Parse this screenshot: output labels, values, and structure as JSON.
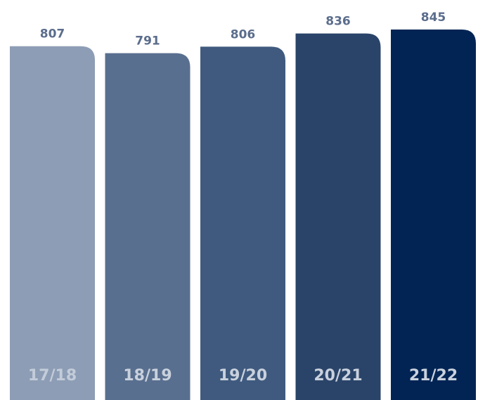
{
  "chart_data": {
    "type": "bar",
    "categories": [
      "17/18",
      "18/19",
      "19/20",
      "20/21",
      "21/22"
    ],
    "values": [
      807,
      791,
      806,
      836,
      845
    ],
    "colors": [
      "#8d9db5",
      "#596f8f",
      "#3f5a7e",
      "#2a4469",
      "#012454"
    ],
    "grid": false
  }
}
